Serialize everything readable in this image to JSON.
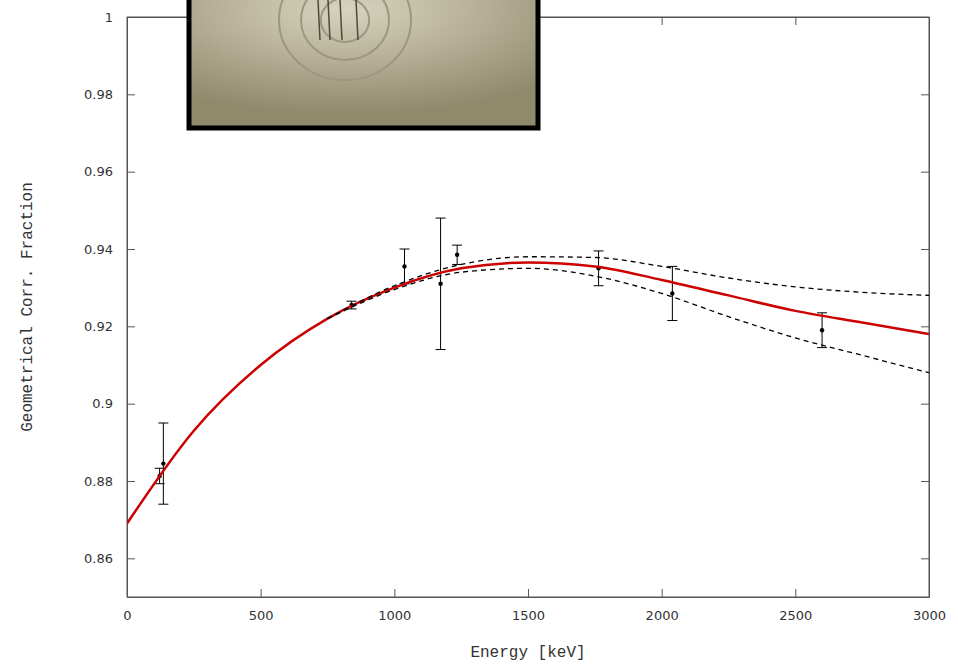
{
  "chart_data": {
    "type": "line",
    "x_label": "Energy [keV]",
    "y_label": "Geometrical Corr. Fraction",
    "xlim": [
      0,
      3000
    ],
    "ylim": [
      0.85,
      1
    ],
    "xticks": [
      0,
      500,
      1000,
      1500,
      2000,
      2500,
      3000
    ],
    "yticks": [
      0.86,
      0.88,
      0.9,
      0.92,
      0.94,
      0.96,
      0.98,
      1
    ],
    "series": [
      {
        "type": "scatter",
        "color": "#000000",
        "marker": "circle",
        "x": [
          122,
          136,
          840,
          1038,
          1173,
          1235,
          1764,
          2040,
          2600
        ],
        "values": [
          0.8813,
          0.8845,
          0.9255,
          0.9355,
          0.931,
          0.9385,
          0.935,
          0.9285,
          0.919
        ],
        "errors": [
          0.002,
          0.0105,
          0.001,
          0.0045,
          0.017,
          0.0025,
          0.0045,
          0.007,
          0.0045
        ]
      },
      {
        "type": "line",
        "color": "#cc0000",
        "line_style": "solid",
        "x": [
          0,
          250,
          500,
          750,
          1000,
          1250,
          1500,
          1750,
          2000,
          2250,
          2500,
          2750,
          3000
        ],
        "values": [
          0.869,
          0.893,
          0.91,
          0.922,
          0.93,
          0.935,
          0.9365,
          0.9355,
          0.932,
          0.928,
          0.924,
          0.921,
          0.918
        ]
      },
      {
        "type": "line",
        "color": "#000000",
        "line_style": "dashed",
        "x": [
          750,
          1000,
          1250,
          1500,
          1750,
          2000,
          2250,
          2500,
          2750,
          3000
        ],
        "values": [
          0.922,
          0.9305,
          0.936,
          0.938,
          0.9378,
          0.9355,
          0.9325,
          0.9302,
          0.9288,
          0.928
        ]
      },
      {
        "type": "line",
        "color": "#000000",
        "line_style": "dashed",
        "x": [
          750,
          1000,
          1250,
          1500,
          1750,
          2000,
          2250,
          2500,
          2750,
          3000
        ],
        "values": [
          0.922,
          0.9295,
          0.934,
          0.935,
          0.933,
          0.9285,
          0.9225,
          0.917,
          0.9125,
          0.908
        ]
      }
    ]
  }
}
